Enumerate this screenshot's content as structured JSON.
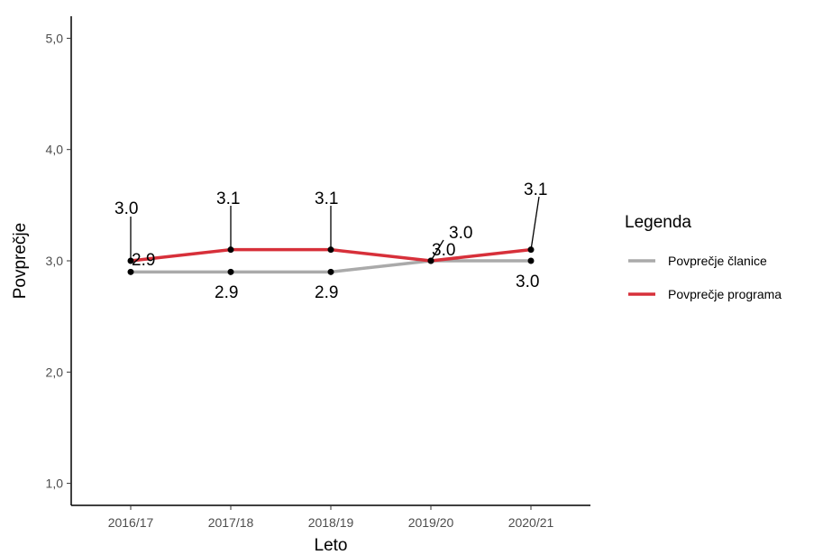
{
  "chart_data": {
    "type": "line",
    "xlabel": "Leto",
    "ylabel": "Povprečje",
    "categories": [
      "2016/17",
      "2017/18",
      "2018/19",
      "2019/20",
      "2020/21"
    ],
    "ylim": [
      1,
      5
    ],
    "y_ticks": [
      "1,0",
      "2,0",
      "3,0",
      "4,0",
      "5,0"
    ],
    "y_tick_values": [
      1,
      2,
      3,
      4,
      5
    ],
    "grid": false,
    "legend": {
      "title": "Legenda",
      "position": "right"
    },
    "series": [
      {
        "name": "Povprečje članice",
        "color": "#aaaaaa",
        "values": [
          2.9,
          2.9,
          2.9,
          3.0,
          3.0
        ],
        "labels": [
          "2.9",
          "2.9",
          "2.9",
          "3.0",
          "3.0"
        ]
      },
      {
        "name": "Povprečje programa",
        "color": "#d7303a",
        "values": [
          3.0,
          3.1,
          3.1,
          3.0,
          3.1
        ],
        "labels": [
          "3.0",
          "3.1",
          "3.1",
          "3.0",
          "3.1"
        ]
      }
    ]
  }
}
